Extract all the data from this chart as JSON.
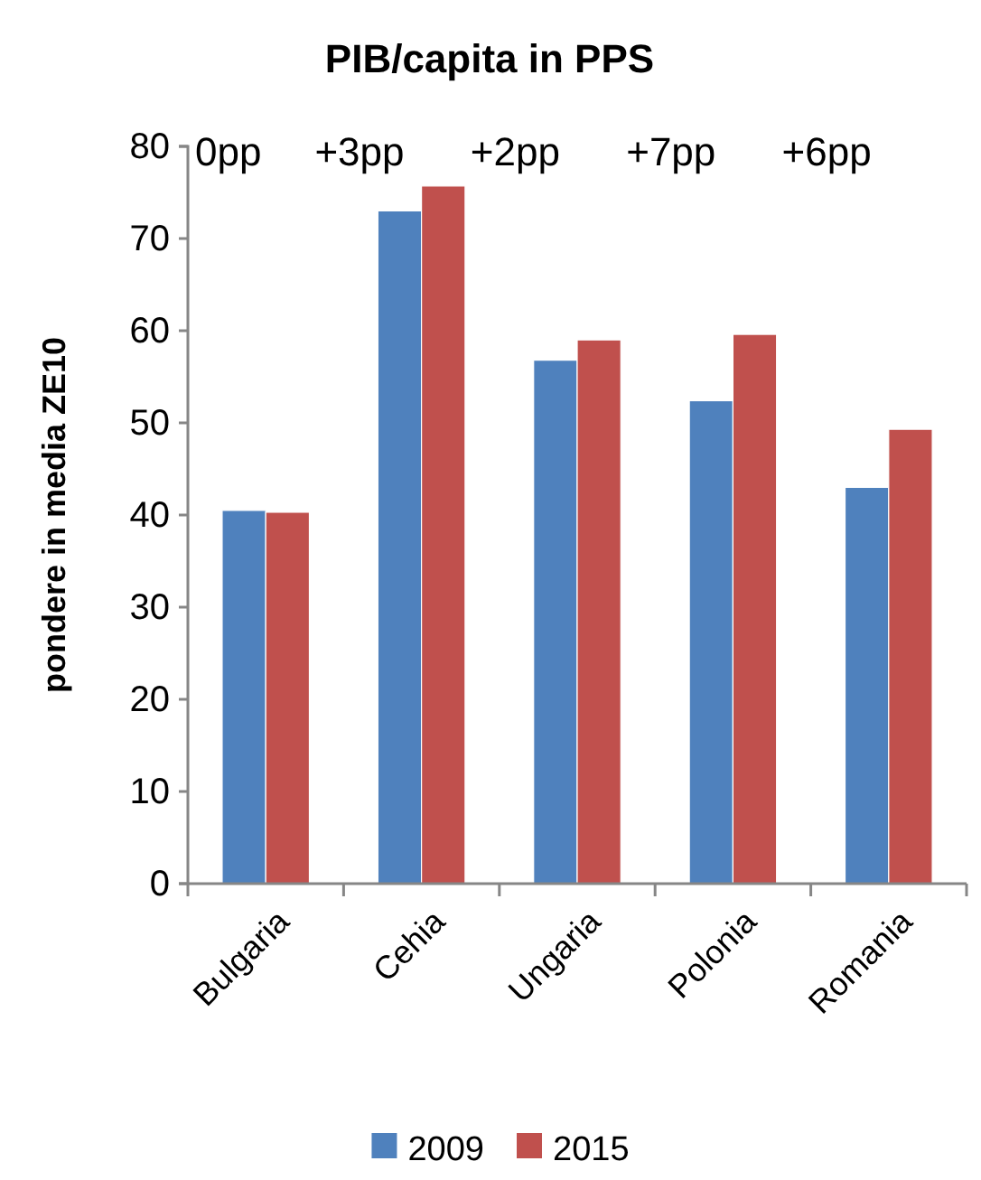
{
  "chart_data": {
    "type": "bar",
    "title": "PIB/capita in PPS",
    "ylabel": "pondere in media ZE10",
    "categories": [
      "Bulgaria",
      "Cehia",
      "Ungaria",
      "Polonia",
      "Romania"
    ],
    "series": [
      {
        "name": "2009",
        "color": "#4f81bd",
        "values": [
          40.5,
          73.0,
          56.8,
          52.4,
          43.0
        ]
      },
      {
        "name": "2015",
        "color": "#c0504d",
        "values": [
          40.3,
          75.7,
          59.0,
          59.6,
          49.3
        ]
      }
    ],
    "ylim": [
      0,
      80
    ],
    "yticks": [
      0,
      10,
      20,
      30,
      40,
      50,
      60,
      70,
      80
    ],
    "grid": false,
    "legend": "bottom",
    "annotations": [
      "0pp",
      "+3pp",
      "+2pp",
      "+7pp",
      "+6pp"
    ]
  }
}
